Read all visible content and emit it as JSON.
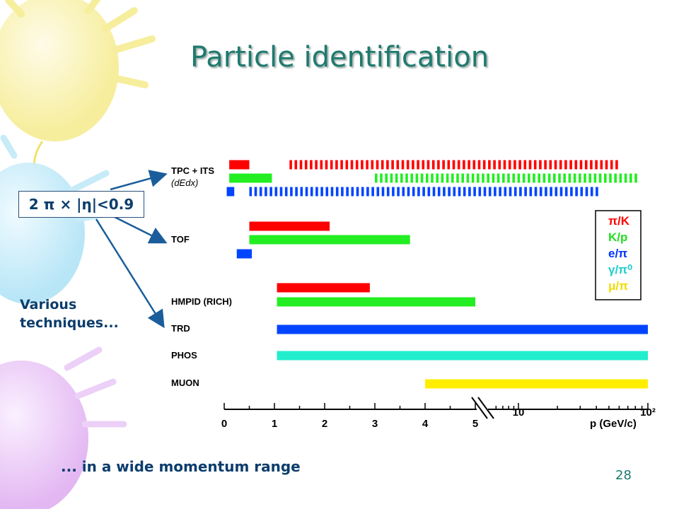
{
  "slide": {
    "title": "Particle identification",
    "eta_label": "2 π × |η|<0.9",
    "note_various": "Various techniques...",
    "note_momentum": "... in a wide momentum range",
    "page_number": "28"
  },
  "chart_data": {
    "type": "bar",
    "title": "",
    "xlabel": "p (GeV/c)",
    "x_ticks_linear": [
      "0",
      "1",
      "2",
      "3",
      "4",
      "5"
    ],
    "x_ticks_log": [
      "10",
      "10²"
    ],
    "xlim": [
      0,
      100
    ],
    "x_break": 5,
    "detectors": [
      {
        "name": "TPC + ITS",
        "sub": "(dEdx)"
      },
      {
        "name": "TOF",
        "sub": ""
      },
      {
        "name": "HMPID (RICH)",
        "sub": ""
      },
      {
        "name": "TRD",
        "sub": ""
      },
      {
        "name": "PHOS",
        "sub": ""
      },
      {
        "name": "MUON",
        "sub": ""
      }
    ],
    "legend": {
      "position": "right",
      "entries": [
        {
          "label": "π/K",
          "color": "#ff0000"
        },
        {
          "label": "K/p",
          "color": "#22dd22"
        },
        {
          "label": "e/π",
          "color": "#0033ff"
        },
        {
          "label": "γ/π⁰",
          "color": "#22cccc"
        },
        {
          "label": "μ/π",
          "color": "#eedd00"
        }
      ]
    },
    "series": [
      {
        "detector": "TPC + ITS",
        "particle": "π/K",
        "color": "#ff0000",
        "style": "solid",
        "from": 0.1,
        "to": 0.5
      },
      {
        "detector": "TPC + ITS",
        "particle": "π/K",
        "color": "#ff0000",
        "style": "dashed",
        "from": 1.3,
        "to": 60
      },
      {
        "detector": "TPC + ITS",
        "particle": "K/p",
        "color": "#22ee22",
        "style": "solid",
        "from": 0.1,
        "to": 0.95
      },
      {
        "detector": "TPC + ITS",
        "particle": "K/p",
        "color": "#22ee22",
        "style": "dashed",
        "from": 3,
        "to": 80
      },
      {
        "detector": "TPC + ITS",
        "particle": "e/π",
        "color": "#0044ff",
        "style": "solid",
        "from": 0.05,
        "to": 0.2
      },
      {
        "detector": "TPC + ITS",
        "particle": "e/π",
        "color": "#0044ff",
        "style": "dashed",
        "from": 0.5,
        "to": 40
      },
      {
        "detector": "TOF",
        "particle": "π/K",
        "color": "#ff0000",
        "style": "solid",
        "from": 0.5,
        "to": 2.1
      },
      {
        "detector": "TOF",
        "particle": "K/p",
        "color": "#22ee22",
        "style": "solid",
        "from": 0.5,
        "to": 3.7
      },
      {
        "detector": "TOF",
        "particle": "e/π",
        "color": "#0044ff",
        "style": "solid",
        "from": 0.25,
        "to": 0.55
      },
      {
        "detector": "HMPID (RICH)",
        "particle": "π/K",
        "color": "#ff0000",
        "style": "solid",
        "from": 1.05,
        "to": 2.9
      },
      {
        "detector": "HMPID (RICH)",
        "particle": "K/p",
        "color": "#22ee22",
        "style": "solid",
        "from": 1.05,
        "to": 5
      },
      {
        "detector": "TRD",
        "particle": "e/π",
        "color": "#0044ff",
        "style": "solid",
        "from": 1.05,
        "to": 100
      },
      {
        "detector": "PHOS",
        "particle": "γ/π⁰",
        "color": "#22eecc",
        "style": "solid",
        "from": 1.05,
        "to": 100
      },
      {
        "detector": "MUON",
        "particle": "μ/π",
        "color": "#ffee00",
        "style": "solid",
        "from": 4,
        "to": 100
      }
    ]
  }
}
